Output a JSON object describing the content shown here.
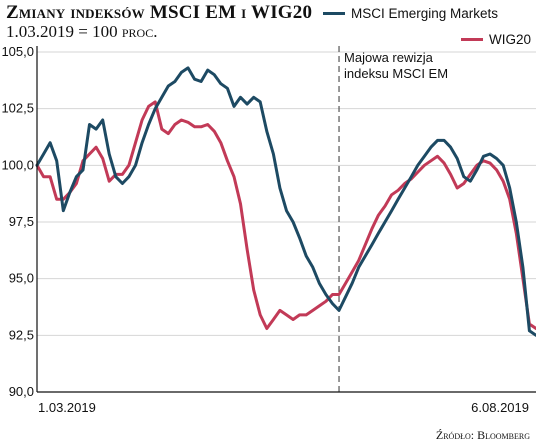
{
  "header": {
    "title": "Zmiany indeksów MSCI EM i WIG20",
    "subtitle_value": "1.03.2019 = 100",
    "subtitle_unit": "proc."
  },
  "legend": {
    "msci_label": "MSCI Emerging Markets",
    "wig_label": "WIG20"
  },
  "source": "Źródło: Bloomberg",
  "annotation": {
    "line1": "Majowa rewizja",
    "line2": "indeksu MSCI EM",
    "at_index": 46
  },
  "colors": {
    "msci": "#1d4a63",
    "wig": "#c23a57",
    "grid": "#d6d6d6",
    "axis": "#111111",
    "annotation_line": "#555555"
  },
  "chart_data": {
    "type": "line",
    "title": "Zmiany indeksów MSCI EM i WIG20",
    "subtitle": "1.03.2019 = 100 proc.",
    "xlabel": "",
    "ylabel": "",
    "x_start_label": "1.03.2019",
    "x_end_label": "6.08.2019",
    "ylim": [
      90,
      105
    ],
    "yticks": [
      "90,0",
      "92,5",
      "95,0",
      "97,5",
      "100,0",
      "102,5",
      "105,0"
    ],
    "ytick_values": [
      90,
      92.5,
      95,
      97.5,
      100,
      102.5,
      105
    ],
    "grid": true,
    "legend_position": "top-right",
    "series": [
      {
        "name": "MSCI Emerging Markets",
        "values": [
          100.0,
          100.5,
          101.0,
          100.2,
          98.0,
          98.8,
          99.5,
          99.8,
          101.8,
          101.6,
          102.0,
          100.5,
          99.5,
          99.2,
          99.5,
          100.0,
          101.0,
          101.8,
          102.5,
          103.0,
          103.5,
          103.7,
          104.1,
          104.3,
          103.8,
          103.7,
          104.2,
          104.0,
          103.6,
          103.4,
          102.6,
          103.0,
          102.7,
          103.0,
          102.8,
          101.5,
          100.5,
          99.0,
          98.0,
          97.5,
          96.8,
          96.0,
          95.5,
          94.8,
          94.3,
          93.9,
          93.6,
          94.2,
          94.8,
          95.5,
          96.0,
          96.5,
          97.0,
          97.5,
          98.0,
          98.5,
          99.0,
          99.5,
          100.0,
          100.4,
          100.8,
          101.1,
          101.1,
          100.8,
          100.3,
          99.5,
          99.3,
          99.8,
          100.4,
          100.5,
          100.3,
          100.0,
          99.0,
          97.5,
          95.5,
          92.7,
          92.5
        ]
      },
      {
        "name": "WIG20",
        "values": [
          100.0,
          99.5,
          99.5,
          98.5,
          98.5,
          98.8,
          99.2,
          100.2,
          100.5,
          100.8,
          100.3,
          99.3,
          99.6,
          99.6,
          100.0,
          101.0,
          102.0,
          102.6,
          102.8,
          101.6,
          101.4,
          101.8,
          102.0,
          101.9,
          101.7,
          101.7,
          101.8,
          101.5,
          101.0,
          100.2,
          99.5,
          98.3,
          96.3,
          94.5,
          93.4,
          92.8,
          93.2,
          93.6,
          93.4,
          93.2,
          93.4,
          93.4,
          93.6,
          93.8,
          94.0,
          94.3,
          94.3,
          94.8,
          95.3,
          95.8,
          96.5,
          97.2,
          97.8,
          98.2,
          98.7,
          98.9,
          99.2,
          99.4,
          99.7,
          100.0,
          100.2,
          100.4,
          100.1,
          99.6,
          99.0,
          99.2,
          99.6,
          100.0,
          100.2,
          100.1,
          99.8,
          99.3,
          98.5,
          97.0,
          95.0,
          93.0,
          92.8
        ]
      }
    ]
  }
}
